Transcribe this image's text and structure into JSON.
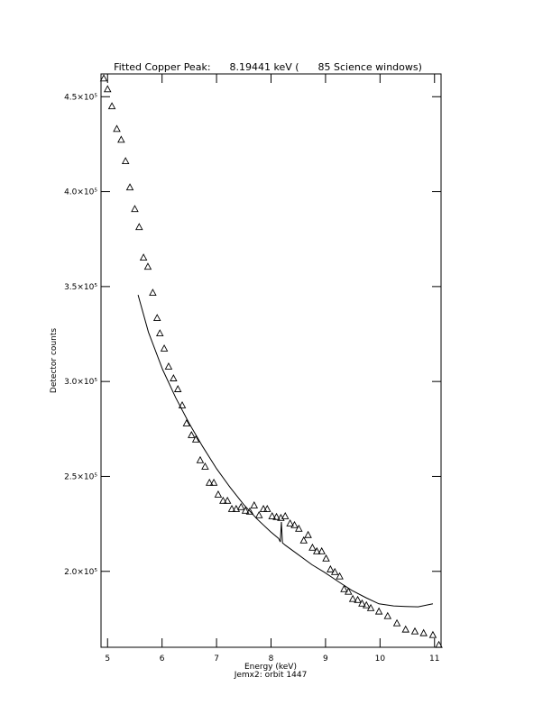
{
  "chart_data": {
    "type": "line",
    "title": "Fitted Copper Peak:      8.19441 keV (      85 Science windows)",
    "x_label": "Energy (keV)",
    "subtitle": "Jemx2: orbit 1447",
    "y_label": "Detector counts",
    "xlim": [
      4.88,
      11.12
    ],
    "ylim": [
      160000,
      462000
    ],
    "xticks": [
      5,
      6,
      7,
      8,
      9,
      10,
      11
    ],
    "yticks": [
      {
        "value": 200000,
        "label": "2.0×10⁵"
      },
      {
        "value": 250000,
        "label": "2.5×10⁵"
      },
      {
        "value": 300000,
        "label": "3.0×10⁵"
      },
      {
        "value": 350000,
        "label": "3.5×10⁵"
      },
      {
        "value": 400000,
        "label": "4.0×10⁵"
      },
      {
        "value": 450000,
        "label": "4.5×10⁵"
      }
    ],
    "series": [
      {
        "marker": "triangle",
        "color": "#000000",
        "x": [
          4.93,
          5.0,
          5.08,
          5.17,
          5.25,
          5.33,
          5.41,
          5.5,
          5.58,
          5.66,
          5.74,
          5.83,
          5.91,
          5.96,
          6.04,
          6.12,
          6.21,
          6.29,
          6.37,
          6.45,
          6.54,
          6.62,
          6.7,
          6.79,
          6.87,
          6.95,
          7.03,
          7.12,
          7.2,
          7.28,
          7.36,
          7.45,
          7.53,
          7.61,
          7.69,
          7.78,
          7.86,
          7.93,
          8.02,
          8.1,
          8.18,
          8.26,
          8.35,
          8.43,
          8.51,
          8.6,
          8.68,
          8.76,
          8.84,
          8.93,
          9.01,
          9.09,
          9.17,
          9.26,
          9.34,
          9.42,
          9.5,
          9.59,
          9.67,
          9.75,
          9.83,
          9.98,
          10.14,
          10.31,
          10.47,
          10.64,
          10.8,
          10.97,
          11.08
        ],
        "values": [
          459500,
          453800,
          444800,
          432900,
          427200,
          415900,
          402100,
          390700,
          381200,
          365100,
          360300,
          346600,
          333300,
          325200,
          317200,
          307700,
          301500,
          295800,
          287300,
          277800,
          271600,
          269300,
          258400,
          255000,
          246500,
          246500,
          240300,
          237000,
          237000,
          232700,
          232700,
          233700,
          231800,
          231300,
          234600,
          229400,
          232700,
          232700,
          228900,
          228500,
          228000,
          228900,
          225100,
          224200,
          222300,
          216100,
          219000,
          212300,
          210400,
          210400,
          206600,
          200900,
          199500,
          197200,
          190500,
          189100,
          185300,
          184800,
          182900,
          182000,
          180500,
          178700,
          176300,
          172500,
          169200,
          168200,
          167300,
          166300,
          161100
        ]
      },
      {
        "marker": "none",
        "color": "#000000",
        "x": [
          5.56,
          5.75,
          6.01,
          6.25,
          6.5,
          6.75,
          7.0,
          7.25,
          7.5,
          7.75,
          7.99,
          8.14,
          8.17,
          8.19,
          8.21,
          8.26,
          8.49,
          8.75,
          8.98,
          9.25,
          9.48,
          9.75,
          9.98,
          10.25,
          10.47,
          10.7,
          10.97
        ],
        "values": [
          345600,
          326000,
          306300,
          291500,
          277800,
          265500,
          254100,
          244200,
          235100,
          227400,
          220900,
          217300,
          215500,
          226000,
          215000,
          213800,
          209000,
          203500,
          199500,
          194300,
          190000,
          186000,
          182900,
          181800,
          181500,
          181300,
          182900
        ]
      }
    ]
  }
}
